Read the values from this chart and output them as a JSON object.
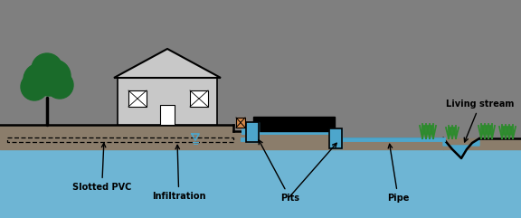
{
  "bg_color": "#7f7f7f",
  "ground_color": "#8b7d6b",
  "water_color": "#6eb5d4",
  "pipe_blue": "#4da6cc",
  "tree_green_dark": "#1a6b2a",
  "tree_green_mid": "#227733",
  "grass_green": "#2d8b2d",
  "text_color": "#000000",
  "labels": {
    "slotted_pvc": "Slotted PVC",
    "infiltration": "Infiltration",
    "pits": "Pits",
    "pipe": "Pipe",
    "living_stream": "Living stream"
  },
  "figsize": [
    5.76,
    2.41
  ],
  "dpi": 100
}
